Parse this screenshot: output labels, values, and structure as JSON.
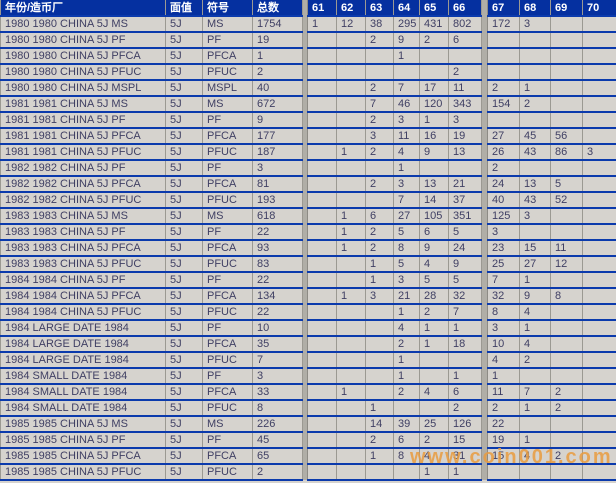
{
  "colors": {
    "header_bg": "#0530A0",
    "row_bg": "#D6D3CE",
    "grid_line_blue": "#0B3AAC",
    "grid_line_gray": "#9B9992",
    "cell_text": "#3F3F63",
    "header_text": "#FFFFFF",
    "watermark_orange": "#E99C3F"
  },
  "watermark": {
    "text": "www.coin001.com"
  },
  "table": {
    "columns": {
      "year_mint": "年份/造币厂",
      "denomination": "面值",
      "designation": "符号",
      "total": "总数"
    },
    "grade_columns": [
      "61",
      "62",
      "63",
      "64",
      "65",
      "66",
      "67",
      "68",
      "69",
      "70"
    ],
    "rows": [
      {
        "name": "1980 1980 CHINA 5J MS",
        "denomination": "5J",
        "designation": "MS",
        "total": "1754",
        "grades": [
          "1",
          "12",
          "38",
          "295",
          "431",
          "802",
          "172",
          "3",
          "",
          ""
        ]
      },
      {
        "name": "1980 1980 CHINA 5J PF",
        "denomination": "5J",
        "designation": "PF",
        "total": "19",
        "grades": [
          "",
          "",
          "2",
          "9",
          "2",
          "6",
          "",
          "",
          "",
          ""
        ]
      },
      {
        "name": "1980 1980 CHINA 5J PFCA",
        "denomination": "5J",
        "designation": "PFCA",
        "total": "1",
        "grades": [
          "",
          "",
          "",
          "1",
          "",
          "",
          "",
          "",
          "",
          ""
        ]
      },
      {
        "name": "1980 1980 CHINA 5J PFUC",
        "denomination": "5J",
        "designation": "PFUC",
        "total": "2",
        "grades": [
          "",
          "",
          "",
          "",
          "",
          "2",
          "",
          "",
          "",
          ""
        ]
      },
      {
        "name": "1980 1980 CHINA 5J MSPL",
        "denomination": "5J",
        "designation": "MSPL",
        "total": "40",
        "grades": [
          "",
          "",
          "2",
          "7",
          "17",
          "11",
          "2",
          "1",
          "",
          ""
        ]
      },
      {
        "name": "1981 1981 CHINA 5J MS",
        "denomination": "5J",
        "designation": "MS",
        "total": "672",
        "grades": [
          "",
          "",
          "7",
          "46",
          "120",
          "343",
          "154",
          "2",
          "",
          ""
        ]
      },
      {
        "name": "1981 1981 CHINA 5J PF",
        "denomination": "5J",
        "designation": "PF",
        "total": "9",
        "grades": [
          "",
          "",
          "2",
          "3",
          "1",
          "3",
          "",
          "",
          "",
          ""
        ]
      },
      {
        "name": "1981 1981 CHINA 5J PFCA",
        "denomination": "5J",
        "designation": "PFCA",
        "total": "177",
        "grades": [
          "",
          "",
          "3",
          "11",
          "16",
          "19",
          "27",
          "45",
          "56",
          ""
        ]
      },
      {
        "name": "1981 1981 CHINA 5J PFUC",
        "denomination": "5J",
        "designation": "PFUC",
        "total": "187",
        "grades": [
          "",
          "1",
          "2",
          "4",
          "9",
          "13",
          "26",
          "43",
          "86",
          "3"
        ]
      },
      {
        "name": "1982 1982 CHINA 5J PF",
        "denomination": "5J",
        "designation": "PF",
        "total": "3",
        "grades": [
          "",
          "",
          "",
          "1",
          "",
          "",
          "2",
          "",
          "",
          ""
        ]
      },
      {
        "name": "1982 1982 CHINA 5J PFCA",
        "denomination": "5J",
        "designation": "PFCA",
        "total": "81",
        "grades": [
          "",
          "",
          "2",
          "3",
          "13",
          "21",
          "24",
          "13",
          "5",
          ""
        ]
      },
      {
        "name": "1982 1982 CHINA 5J PFUC",
        "denomination": "5J",
        "designation": "PFUC",
        "total": "193",
        "grades": [
          "",
          "",
          "",
          "7",
          "14",
          "37",
          "40",
          "43",
          "52",
          ""
        ]
      },
      {
        "name": "1983 1983 CHINA 5J MS",
        "denomination": "5J",
        "designation": "MS",
        "total": "618",
        "grades": [
          "",
          "1",
          "6",
          "27",
          "105",
          "351",
          "125",
          "3",
          "",
          ""
        ]
      },
      {
        "name": "1983 1983 CHINA 5J PF",
        "denomination": "5J",
        "designation": "PF",
        "total": "22",
        "grades": [
          "",
          "1",
          "2",
          "5",
          "6",
          "5",
          "3",
          "",
          "",
          ""
        ]
      },
      {
        "name": "1983 1983 CHINA 5J PFCA",
        "denomination": "5J",
        "designation": "PFCA",
        "total": "93",
        "grades": [
          "",
          "1",
          "2",
          "8",
          "9",
          "24",
          "23",
          "15",
          "11",
          ""
        ]
      },
      {
        "name": "1983 1983 CHINA 5J PFUC",
        "denomination": "5J",
        "designation": "PFUC",
        "total": "83",
        "grades": [
          "",
          "",
          "1",
          "5",
          "4",
          "9",
          "25",
          "27",
          "12",
          ""
        ]
      },
      {
        "name": "1984 1984 CHINA 5J PF",
        "denomination": "5J",
        "designation": "PF",
        "total": "22",
        "grades": [
          "",
          "",
          "1",
          "3",
          "5",
          "5",
          "7",
          "1",
          "",
          ""
        ]
      },
      {
        "name": "1984 1984 CHINA 5J PFCA",
        "denomination": "5J",
        "designation": "PFCA",
        "total": "134",
        "grades": [
          "",
          "1",
          "3",
          "21",
          "28",
          "32",
          "32",
          "9",
          "8",
          ""
        ]
      },
      {
        "name": "1984 1984 CHINA 5J PFUC",
        "denomination": "5J",
        "designation": "PFUC",
        "total": "22",
        "grades": [
          "",
          "",
          "",
          "1",
          "2",
          "7",
          "8",
          "4",
          "",
          ""
        ]
      },
      {
        "name": "1984 LARGE DATE 1984",
        "denomination": "5J",
        "designation": "PF",
        "total": "10",
        "grades": [
          "",
          "",
          "",
          "4",
          "1",
          "1",
          "3",
          "1",
          "",
          ""
        ]
      },
      {
        "name": "1984 LARGE DATE 1984",
        "denomination": "5J",
        "designation": "PFCA",
        "total": "35",
        "grades": [
          "",
          "",
          "",
          "2",
          "1",
          "18",
          "10",
          "4",
          "",
          ""
        ]
      },
      {
        "name": "1984 LARGE DATE 1984",
        "denomination": "5J",
        "designation": "PFUC",
        "total": "7",
        "grades": [
          "",
          "",
          "",
          "1",
          "",
          "",
          "4",
          "2",
          "",
          ""
        ]
      },
      {
        "name": "1984 SMALL DATE 1984",
        "denomination": "5J",
        "designation": "PF",
        "total": "3",
        "grades": [
          "",
          "",
          "",
          "1",
          "",
          "1",
          "1",
          "",
          "",
          ""
        ]
      },
      {
        "name": "1984 SMALL DATE 1984",
        "denomination": "5J",
        "designation": "PFCA",
        "total": "33",
        "grades": [
          "",
          "1",
          "",
          "2",
          "4",
          "6",
          "11",
          "7",
          "2",
          ""
        ]
      },
      {
        "name": "1984 SMALL DATE 1984",
        "denomination": "5J",
        "designation": "PFUC",
        "total": "8",
        "grades": [
          "",
          "",
          "1",
          "",
          "",
          "2",
          "2",
          "1",
          "2",
          ""
        ]
      },
      {
        "name": "1985 1985 CHINA 5J MS",
        "denomination": "5J",
        "designation": "MS",
        "total": "226",
        "grades": [
          "",
          "",
          "14",
          "39",
          "25",
          "126",
          "22",
          "",
          "",
          ""
        ]
      },
      {
        "name": "1985 1985 CHINA 5J PF",
        "denomination": "5J",
        "designation": "PF",
        "total": "45",
        "grades": [
          "",
          "",
          "2",
          "6",
          "2",
          "15",
          "19",
          "1",
          "",
          ""
        ]
      },
      {
        "name": "1985 1985 CHINA 5J PFCA",
        "denomination": "5J",
        "designation": "PFCA",
        "total": "65",
        "grades": [
          "",
          "",
          "1",
          "8",
          "4",
          "31",
          "15",
          "4",
          "2",
          ""
        ]
      },
      {
        "name": "1985 1985 CHINA 5J PFUC",
        "denomination": "5J",
        "designation": "PFUC",
        "total": "2",
        "grades": [
          "",
          "",
          "",
          "",
          "1",
          "1",
          "",
          "",
          "",
          ""
        ]
      }
    ]
  }
}
